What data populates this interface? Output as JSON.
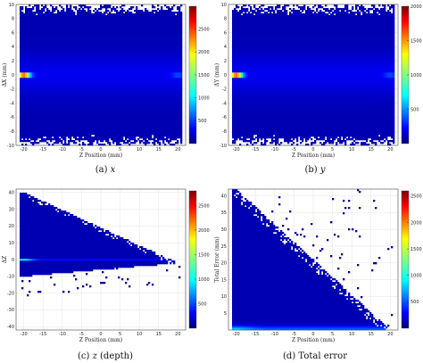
{
  "chart_data": [
    {
      "type": "heatmap",
      "caption_label": "(a)",
      "caption_var": "x",
      "xlabel": "Z Position (mm)",
      "ylabel": "ΔX (mm)",
      "xlim": [
        -22,
        22
      ],
      "ylim": [
        -10,
        10
      ],
      "xticks": [
        -20,
        -15,
        -10,
        -5,
        0,
        5,
        10,
        15,
        20
      ],
      "yticks": [
        -10,
        -8,
        -6,
        -4,
        -2,
        0,
        2,
        4,
        6,
        8,
        10
      ],
      "colorbar": {
        "min": 0,
        "max": 3000,
        "ticks": [
          500,
          1000,
          1500,
          2000,
          2500
        ],
        "colormap": "jet"
      },
      "grid": true,
      "distribution": "symmetric band around ΔX=0 with peak at Z≈-20, spread ±10"
    },
    {
      "type": "heatmap",
      "caption_label": "(b)",
      "caption_var": "y",
      "xlabel": "Z Position (mm)",
      "ylabel": "ΔY (mm)",
      "xlim": [
        -22,
        22
      ],
      "ylim": [
        -10,
        10
      ],
      "xticks": [
        -20,
        -15,
        -10,
        -5,
        0,
        5,
        10,
        15,
        20
      ],
      "yticks": [
        -10,
        -8,
        -6,
        -4,
        -2,
        0,
        2,
        4,
        6,
        8,
        10
      ],
      "colorbar": {
        "min": 0,
        "max": 2000,
        "ticks": [
          500,
          1000,
          1500,
          2000
        ],
        "colormap": "jet"
      },
      "grid": true,
      "distribution": "symmetric band around ΔY=0 with peak at Z≈-20, spread ±10"
    },
    {
      "type": "heatmap",
      "caption_label": "(c)",
      "caption_var": "z",
      "caption_suffix": "(depth)",
      "xlabel": "Z Position (mm)",
      "ylabel": "ΔZ",
      "xlim": [
        -22,
        22
      ],
      "ylim": [
        -42,
        42
      ],
      "xticks": [
        -20,
        -15,
        -10,
        -5,
        0,
        5,
        10,
        15,
        20
      ],
      "yticks": [
        -40,
        -30,
        -20,
        -10,
        0,
        10,
        20,
        30,
        40
      ],
      "colorbar": {
        "min": 0,
        "max": 2800,
        "ticks": [
          500,
          1000,
          1500,
          2000,
          2500
        ],
        "colormap": "jet"
      },
      "grid": true,
      "distribution": "diagonal band from (-20,+40) to (20,-2), peak along ΔZ=0"
    },
    {
      "type": "heatmap",
      "caption_label": "(d)",
      "caption_var": "",
      "caption_suffix": "Total error",
      "xlabel": "Z Position (mm)",
      "ylabel": "Total Error (mm)",
      "xlim": [
        -22,
        22
      ],
      "ylim": [
        0,
        42
      ],
      "xticks": [
        -20,
        -15,
        -10,
        -5,
        0,
        5,
        10,
        15,
        20
      ],
      "yticks": [
        5,
        10,
        15,
        20,
        25,
        30,
        35,
        40
      ],
      "colorbar": {
        "min": 0,
        "max": 2600,
        "ticks": [
          500,
          1000,
          1500,
          2000,
          2500
        ],
        "colormap": "jet"
      },
      "grid": true,
      "distribution": "triangular region bounded by line from (-20,42) to (20,0), peak near 0"
    }
  ]
}
